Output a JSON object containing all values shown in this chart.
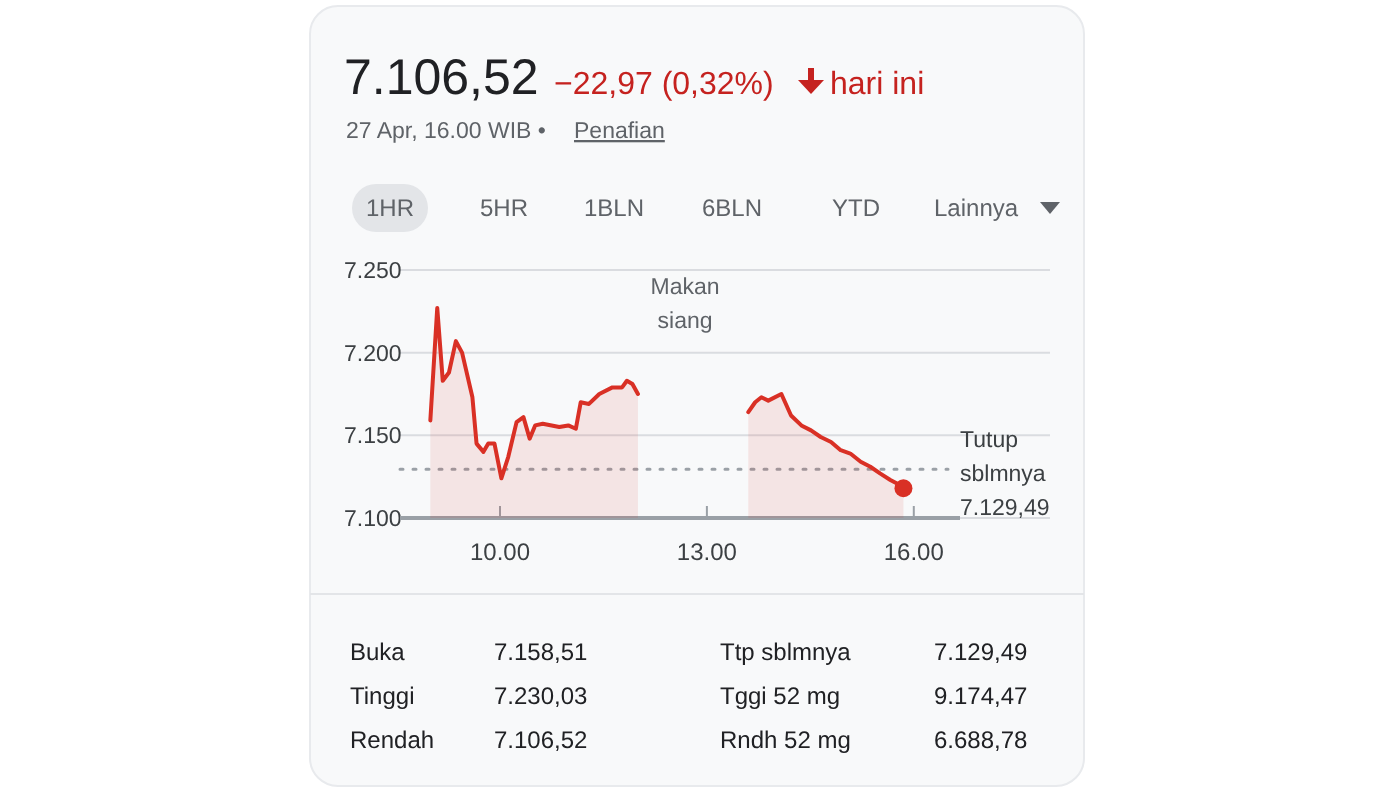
{
  "chart_data": {
    "type": "area",
    "title": "7.106,52",
    "subtitle": "−22,97 (0,32%)",
    "annotations": [
      "hari ini",
      "27 Apr, 16.00 WIB •",
      "Penafian",
      "1HR",
      "5HR",
      "1BLN",
      "6BLN",
      "YTD",
      "Lainnya",
      "Makan siang",
      "Buka",
      "7.158,51",
      "Ttp sblmnya",
      "7.129,49",
      "Tinggi",
      "7.230,03",
      "Tggi 52 mg",
      "9.174,47",
      "Rendah",
      "7.106,52",
      "Rndh 52 mg",
      "6.688,78"
    ],
    "x": [
      8.99,
      9.09,
      9.17,
      9.26,
      9.36,
      9.45,
      9.6,
      9.66,
      9.76,
      9.83,
      9.92,
      10.02,
      10.12,
      10.24,
      10.34,
      10.43,
      10.51,
      10.62,
      10.86,
      10.99,
      11.1,
      11.17,
      11.29,
      11.44,
      11.63,
      11.77,
      11.84,
      11.92,
      12.0,
      12.8,
      13.6,
      13.7,
      13.79,
      13.89,
      14.08,
      14.22,
      14.37,
      14.51,
      14.65,
      14.8,
      14.94,
      15.08,
      15.23,
      15.37,
      15.51,
      15.66,
      15.75,
      15.85
    ],
    "series": [
      {
        "color": "#d93025",
        "values": [
          7159,
          7227,
          7183,
          7188,
          7207,
          7200,
          7173,
          7145,
          7140,
          7145,
          7145,
          7124,
          7137,
          7158,
          7161,
          7148,
          7156,
          7157,
          7155,
          7156,
          7154,
          7170,
          7169,
          7175,
          7179,
          7179,
          7183,
          7181,
          7175,
          null,
          7164,
          7170,
          7173,
          7171,
          7175,
          7162,
          7156,
          7153,
          7149,
          7146,
          7141,
          7139,
          7134,
          7131,
          7127,
          7123,
          7121,
          7118
        ]
      }
    ],
    "xlim": [
      8.55,
      16.67
    ],
    "ylim": [
      7100,
      7250
    ],
    "xticks": [
      {
        "value": 10,
        "label": "10.00"
      },
      {
        "value": 13,
        "label": "13.00"
      },
      {
        "value": 16,
        "label": "16.00"
      }
    ],
    "yticks": [
      {
        "value": 7100,
        "label": "7.100"
      },
      {
        "value": 7150,
        "label": "7.150"
      },
      {
        "value": 7200,
        "label": "7.200"
      },
      {
        "value": 7250,
        "label": "7.250"
      }
    ],
    "grid": "y",
    "marker": "none",
    "line_style": "solid",
    "ref_lines": [
      {
        "axis": "y",
        "value": 7129.49,
        "label": "Tutup sblmnya 7.129,49",
        "color": "#9aa0a6",
        "line_style": "dotted"
      }
    ]
  }
}
